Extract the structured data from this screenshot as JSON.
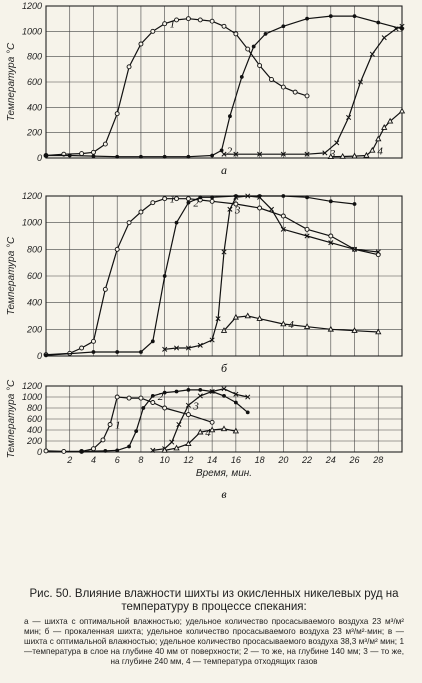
{
  "figure": {
    "caption_title": "Рис. 50. Влияние влажности шихты из окисленных никелевых руд на температуру в процессе спекания:",
    "caption_note": "а — шихта с оптимальной влажностью; удельное количество просасываемого воздуха 23 м³/м² мин; б — прокаленная шихта; удельное количество просасываемого воздуха 23 м³/м²·мин; в — шихта с оптимальной влажностью; удельное количество просасываемого воздуха 38,3 м³/м² мин; 1—температура в слое на глубине 40 мм от поверхности; 2 — то же, на глубине 140 мм; 3 — то же, на глубине 240 мм, 4 — температура отходящих газов"
  },
  "chart_data": [
    {
      "type": "line",
      "panel_label": "а",
      "ylabel": "Температура °С",
      "yticks": [
        0,
        200,
        400,
        600,
        800,
        1000,
        1200
      ],
      "ylim": [
        0,
        1200
      ],
      "xlim": [
        0,
        30
      ],
      "grid": true,
      "series": [
        {
          "name": "1",
          "marker": "open-circle",
          "points": [
            [
              0,
              20
            ],
            [
              1.5,
              30
            ],
            [
              3,
              35
            ],
            [
              4,
              45
            ],
            [
              5,
              110
            ],
            [
              6,
              350
            ],
            [
              7,
              720
            ],
            [
              8,
              900
            ],
            [
              9,
              1000
            ],
            [
              10,
              1060
            ],
            [
              11,
              1090
            ],
            [
              12,
              1100
            ],
            [
              13,
              1090
            ],
            [
              14,
              1080
            ],
            [
              15,
              1040
            ],
            [
              16,
              980
            ],
            [
              17,
              860
            ],
            [
              18,
              730
            ],
            [
              19,
              620
            ],
            [
              20,
              560
            ],
            [
              21,
              520
            ],
            [
              22,
              490
            ]
          ]
        },
        {
          "name": "2",
          "marker": "filled-dot",
          "points": [
            [
              0,
              20
            ],
            [
              2,
              20
            ],
            [
              4,
              15
            ],
            [
              6,
              10
            ],
            [
              8,
              10
            ],
            [
              10,
              10
            ],
            [
              12,
              10
            ],
            [
              14,
              20
            ],
            [
              14.8,
              60
            ],
            [
              15.5,
              330
            ],
            [
              16.5,
              640
            ],
            [
              17.5,
              880
            ],
            [
              18.5,
              980
            ],
            [
              20,
              1040
            ],
            [
              22,
              1100
            ],
            [
              24,
              1120
            ],
            [
              26,
              1120
            ],
            [
              28,
              1070
            ],
            [
              30,
              1020
            ]
          ]
        },
        {
          "name": "3",
          "marker": "cross",
          "points": [
            [
              15,
              30
            ],
            [
              16,
              30
            ],
            [
              18,
              30
            ],
            [
              20,
              30
            ],
            [
              22,
              30
            ],
            [
              23.5,
              40
            ],
            [
              24.5,
              120
            ],
            [
              25.5,
              320
            ],
            [
              26.5,
              600
            ],
            [
              27.5,
              820
            ],
            [
              28.5,
              950
            ],
            [
              29.5,
              1020
            ],
            [
              30,
              1040
            ]
          ]
        },
        {
          "name": "4",
          "marker": "open-triangle",
          "points": [
            [
              24,
              10
            ],
            [
              25,
              12
            ],
            [
              26,
              15
            ],
            [
              27,
              20
            ],
            [
              27.5,
              60
            ],
            [
              28,
              150
            ],
            [
              28.5,
              240
            ],
            [
              29,
              290
            ],
            [
              30,
              370
            ]
          ]
        }
      ]
    },
    {
      "type": "line",
      "panel_label": "б",
      "ylabel": "Температура °С",
      "yticks": [
        0,
        200,
        400,
        600,
        800,
        1000,
        1200
      ],
      "ylim": [
        0,
        1200
      ],
      "xlim": [
        0,
        30
      ],
      "grid": true,
      "series": [
        {
          "name": "1",
          "marker": "open-circle",
          "points": [
            [
              0,
              10
            ],
            [
              2,
              20
            ],
            [
              3,
              60
            ],
            [
              4,
              110
            ],
            [
              5,
              500
            ],
            [
              6,
              800
            ],
            [
              7,
              1000
            ],
            [
              8,
              1080
            ],
            [
              9,
              1150
            ],
            [
              10,
              1180
            ],
            [
              11,
              1180
            ],
            [
              12,
              1180
            ],
            [
              13,
              1170
            ],
            [
              14,
              1160
            ],
            [
              16,
              1140
            ],
            [
              18,
              1110
            ],
            [
              20,
              1050
            ],
            [
              22,
              950
            ],
            [
              24,
              900
            ],
            [
              26,
              800
            ],
            [
              28,
              760
            ]
          ]
        },
        {
          "name": "2",
          "marker": "filled-dot",
          "points": [
            [
              0,
              5
            ],
            [
              4,
              30
            ],
            [
              6,
              30
            ],
            [
              8,
              30
            ],
            [
              9,
              110
            ],
            [
              10,
              600
            ],
            [
              11,
              1000
            ],
            [
              12,
              1150
            ],
            [
              13,
              1190
            ],
            [
              14,
              1190
            ],
            [
              16,
              1200
            ],
            [
              18,
              1200
            ],
            [
              20,
              1200
            ],
            [
              22,
              1190
            ],
            [
              24,
              1160
            ],
            [
              26,
              1140
            ]
          ]
        },
        {
          "name": "3",
          "marker": "cross",
          "points": [
            [
              10,
              50
            ],
            [
              11,
              60
            ],
            [
              12,
              60
            ],
            [
              13,
              80
            ],
            [
              14,
              120
            ],
            [
              14.5,
              280
            ],
            [
              15,
              780
            ],
            [
              15.5,
              1100
            ],
            [
              16,
              1190
            ],
            [
              17,
              1200
            ],
            [
              18,
              1190
            ],
            [
              19,
              1100
            ],
            [
              20,
              950
            ],
            [
              22,
              900
            ],
            [
              24,
              850
            ],
            [
              26,
              800
            ],
            [
              28,
              780
            ]
          ]
        },
        {
          "name": "4",
          "marker": "open-triangle",
          "points": [
            [
              15,
              190
            ],
            [
              16,
              290
            ],
            [
              17,
              300
            ],
            [
              18,
              280
            ],
            [
              20,
              240
            ],
            [
              22,
              220
            ],
            [
              24,
              200
            ],
            [
              26,
              190
            ],
            [
              28,
              180
            ]
          ]
        }
      ]
    },
    {
      "type": "line",
      "panel_label": "в",
      "xlabel": "Время, мин.",
      "ylabel": "Температура °С",
      "xticks": [
        2,
        4,
        6,
        8,
        10,
        12,
        14,
        16,
        18,
        20,
        22,
        24,
        26,
        28
      ],
      "yticks": [
        0,
        200,
        400,
        600,
        800,
        1000,
        1200
      ],
      "ylim": [
        0,
        1200
      ],
      "xlim": [
        0,
        30
      ],
      "grid": true,
      "series": [
        {
          "name": "1",
          "marker": "open-circle",
          "points": [
            [
              0,
              20
            ],
            [
              1.5,
              10
            ],
            [
              3,
              10
            ],
            [
              4,
              60
            ],
            [
              4.8,
              220
            ],
            [
              5.4,
              500
            ],
            [
              6,
              1000
            ],
            [
              7,
              980
            ],
            [
              8,
              980
            ],
            [
              9,
              900
            ],
            [
              10,
              800
            ],
            [
              12,
              680
            ],
            [
              14,
              540
            ]
          ]
        },
        {
          "name": "2",
          "marker": "filled-dot",
          "points": [
            [
              3,
              10
            ],
            [
              5,
              20
            ],
            [
              6,
              30
            ],
            [
              7,
              100
            ],
            [
              7.6,
              380
            ],
            [
              8.2,
              800
            ],
            [
              9,
              1020
            ],
            [
              10,
              1080
            ],
            [
              11,
              1100
            ],
            [
              12,
              1130
            ],
            [
              13,
              1130
            ],
            [
              14,
              1100
            ],
            [
              15,
              1020
            ],
            [
              16,
              900
            ],
            [
              17,
              720
            ]
          ]
        },
        {
          "name": "3",
          "marker": "cross",
          "points": [
            [
              9,
              30
            ],
            [
              10,
              60
            ],
            [
              10.6,
              180
            ],
            [
              11.2,
              500
            ],
            [
              12,
              850
            ],
            [
              13,
              1020
            ],
            [
              14,
              1100
            ],
            [
              15,
              1150
            ],
            [
              16,
              1050
            ],
            [
              17,
              1000
            ]
          ]
        },
        {
          "name": "4",
          "marker": "open-triangle",
          "points": [
            [
              10,
              30
            ],
            [
              11,
              70
            ],
            [
              12,
              150
            ],
            [
              13,
              360
            ],
            [
              14,
              400
            ],
            [
              15,
              420
            ],
            [
              16,
              380
            ]
          ]
        }
      ]
    }
  ]
}
